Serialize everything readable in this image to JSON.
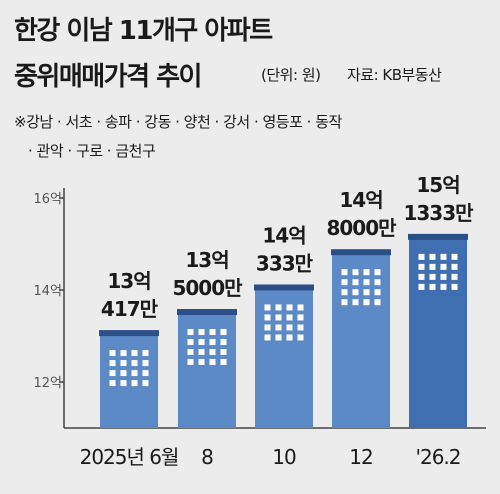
{
  "header": {
    "title_line1": "한강 이남 11개구 아파트",
    "title_line2": "중위매매가격 추이",
    "unit": "(단위: 원)",
    "source": "자료: KB부동산",
    "note_line1": "※강남 · 서초 · 송파 · 강동 · 양천 · 강서 · 영등포 · 동작",
    "note_line2": "· 관악 · 구로 · 금천구"
  },
  "chart_data": {
    "type": "bar",
    "title": "한강 이남 11개구 아파트 중위매매가격 추이",
    "ylabel": "",
    "xlabel": "",
    "ylim": [
      110000,
      160000
    ],
    "yticks": [
      120000,
      140000,
      160000
    ],
    "ytick_labels": [
      "12억",
      "14억",
      "16억"
    ],
    "categories": [
      "2025년 6월",
      "8",
      "10",
      "12",
      "'26.2"
    ],
    "values": [
      130417,
      135000,
      140333,
      148000,
      151333
    ],
    "value_labels": [
      [
        "13억",
        "417만"
      ],
      [
        "13억",
        "5000만"
      ],
      [
        "14억",
        "333만"
      ],
      [
        "14억",
        "8000만"
      ],
      [
        "15억",
        "1333만"
      ]
    ],
    "unit": "만원",
    "grid": false,
    "colors": {
      "bar": "#5b8ac7",
      "bar_last": "#3f6fb0",
      "cap": "#2d4f87",
      "window": "#ffffff",
      "axis": "#444444",
      "background": "#ececec"
    }
  }
}
